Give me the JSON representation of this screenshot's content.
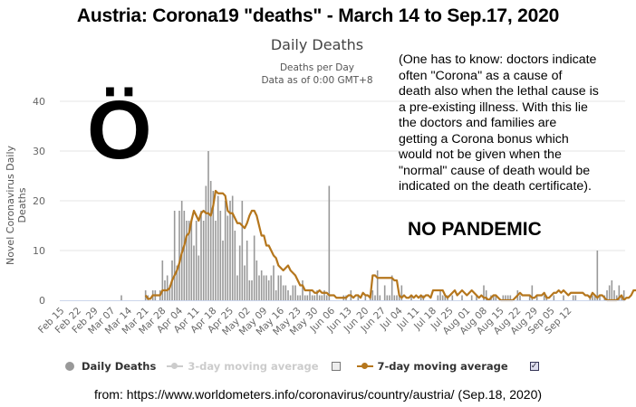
{
  "header": {
    "title": "Austria: Corona19 \"deaths\" - March 14 to Sep.17, 2020"
  },
  "chart_header": {
    "title": "Daily Deaths",
    "subtitle_1": "Deaths per Day",
    "subtitle_2": "Data as of 0:00 GMT+8"
  },
  "annotations": {
    "big_letter": "Ö",
    "note": "(One has to know: doctors indicate\noften \"Corona\" as a cause of\ndeath also when the lethal cause is\na pre-existing illness. With this lie\nthe doctors and families are\ngetting a Corona bonus which\nwould not be given when the\n\"normal\" cause of death would be\nindicated on the death certificate).",
    "stamp": "NO PANDEMIC"
  },
  "legend": {
    "items": [
      {
        "label": "Daily Deaths",
        "icon": "circle-icon",
        "color": "#999999",
        "enabled": true
      },
      {
        "label": "3-day moving average",
        "icon": "line-marker-icon",
        "color": "#cccccc",
        "enabled": false
      },
      {
        "label": "7-day moving average",
        "icon": "line-marker-icon",
        "color": "#b5761c",
        "enabled": true
      }
    ],
    "checkbox_3day": "unchecked",
    "checkbox_7day": "checked",
    "check_glyph": "✓"
  },
  "source": "from: https://www.worldometers.info/coronavirus/country/austria/ (Sep.18, 2020)",
  "colors": {
    "bar": "#999999",
    "line": "#b5761c",
    "grid": "#e6e6e6",
    "axis": "#ccd6eb",
    "tick_text": "#666666"
  },
  "chart_data": {
    "type": "bar",
    "title": "Daily Deaths",
    "subtitle": "Deaths per Day / Data as of 0:00 GMT+8",
    "xlabel": "",
    "ylabel": "Novel Coronavirus Daily Deaths",
    "ylim": [
      0,
      40
    ],
    "yticks": [
      0,
      10,
      20,
      30,
      40
    ],
    "grid": true,
    "legend_position": "bottom",
    "x_start": "Feb 15",
    "x_end": "Sep 17",
    "xtick_labels": [
      "Feb 15",
      "Feb 22",
      "Feb 29",
      "Mar 07",
      "Mar 14",
      "Mar 21",
      "Mar 28",
      "Apr 04",
      "Apr 11",
      "Apr 18",
      "Apr 25",
      "May 02",
      "May 09",
      "May 16",
      "May 23",
      "May 30",
      "Jun 06",
      "Jun 13",
      "Jun 20",
      "Jun 27",
      "Jul 04",
      "Jul 11",
      "Jul 18",
      "Jul 25",
      "Aug 01",
      "Aug 08",
      "Aug 15",
      "Aug 22",
      "Aug 29",
      "Sep 05",
      "Sep 12"
    ],
    "series": [
      {
        "name": "Daily Deaths",
        "type": "bar",
        "values": [
          0,
          0,
          0,
          0,
          0,
          0,
          0,
          0,
          0,
          0,
          0,
          0,
          0,
          0,
          0,
          0,
          0,
          0,
          0,
          0,
          0,
          0,
          0,
          0,
          0,
          1,
          0,
          0,
          0,
          0,
          0,
          0,
          0,
          0,
          0,
          2,
          1,
          0,
          2,
          2,
          0,
          2,
          8,
          4,
          5,
          3,
          8,
          18,
          7,
          18,
          20,
          18,
          16,
          16,
          16,
          11,
          16,
          9,
          18,
          16,
          23,
          30,
          24,
          22,
          16,
          21,
          18,
          12,
          20,
          17,
          20,
          21,
          14,
          5,
          11,
          20,
          7,
          12,
          4,
          4,
          13,
          8,
          5,
          6,
          5,
          5,
          4,
          5,
          7,
          2,
          5,
          5,
          3,
          3,
          2,
          1,
          3,
          3,
          1,
          1,
          4,
          1,
          1,
          2,
          1,
          1,
          2,
          1,
          1,
          2,
          1,
          23,
          0,
          0,
          0,
          0,
          0,
          1,
          1,
          0,
          2,
          0,
          0,
          1,
          0,
          0,
          1,
          0,
          1,
          2,
          1,
          6,
          1,
          0,
          3,
          1,
          1,
          5,
          1,
          1,
          1,
          3,
          0,
          0,
          0,
          1,
          0,
          0,
          0,
          1,
          1,
          0,
          0,
          0,
          0,
          0,
          1,
          2,
          1,
          1,
          1,
          0,
          1,
          0,
          0,
          0,
          1,
          0,
          0,
          0,
          1,
          0,
          1,
          0,
          0,
          3,
          2,
          0,
          1,
          1,
          1,
          0,
          0,
          1,
          1,
          1,
          1,
          0,
          0,
          2,
          1,
          0,
          0,
          0,
          1,
          3,
          0,
          1,
          0,
          0,
          1,
          1,
          0,
          0,
          1,
          0,
          0,
          0,
          1,
          0,
          0,
          0,
          1,
          1,
          0,
          0,
          0,
          0,
          0,
          1,
          1,
          1,
          10,
          1,
          0,
          1,
          2,
          3,
          4,
          2,
          1,
          3,
          1,
          2
        ]
      },
      {
        "name": "7-day moving average",
        "type": "line",
        "values": [
          null,
          null,
          null,
          null,
          null,
          null,
          null,
          null,
          null,
          null,
          null,
          null,
          null,
          null,
          null,
          null,
          null,
          null,
          null,
          null,
          null,
          null,
          null,
          null,
          null,
          null,
          null,
          null,
          null,
          null,
          null,
          null,
          null,
          null,
          null,
          1,
          0.3,
          0.3,
          1,
          1,
          1,
          1,
          2,
          2,
          2,
          2.5,
          4,
          5,
          6,
          7.5,
          9.5,
          11,
          13,
          13.5,
          16,
          18,
          17,
          16,
          17.5,
          18,
          17.5,
          17.5,
          17,
          19,
          22,
          21.5,
          21.5,
          21.5,
          21,
          18,
          17.5,
          17.5,
          16.5,
          15.5,
          15.5,
          15,
          14.5,
          15.5,
          17,
          18,
          18,
          17,
          15,
          13,
          13,
          11,
          11,
          10,
          9,
          8.5,
          7,
          6.5,
          6,
          6.5,
          7,
          6,
          5.5,
          5,
          4,
          3,
          3,
          2,
          2,
          2,
          2,
          1.5,
          1.5,
          2,
          1.5,
          1.5,
          1.5,
          1,
          1,
          1,
          0.5,
          0.5,
          0.5,
          0.5,
          0.5,
          1,
          1,
          0.5,
          1,
          1,
          0.5,
          1.5,
          1,
          1,
          0.5,
          5,
          5,
          4.5,
          4.5,
          4.5,
          4.5,
          4.5,
          4.5,
          4.5,
          4,
          4,
          1,
          0.5,
          1,
          0.5,
          0.5,
          1,
          0.5,
          1,
          0.5,
          1,
          0.5,
          1,
          1,
          0.5,
          2,
          2,
          2,
          2,
          2,
          1,
          0.5,
          1,
          1.5,
          2,
          1,
          1.5,
          2,
          1.5,
          1,
          1.5,
          2,
          1.5,
          1,
          0.5,
          1,
          0.5,
          0.5,
          0,
          0.5,
          1,
          1,
          0.5,
          0,
          0,
          0,
          0,
          0,
          0,
          0.5,
          1,
          1.5,
          1,
          1,
          1,
          1,
          0.5,
          0.5,
          1,
          1,
          1,
          1.5,
          0.5,
          0.5,
          1,
          1.5,
          1.5,
          2,
          1.5,
          2,
          1.5,
          1,
          1.5,
          1.5,
          1.5,
          1.5,
          1.5,
          1.5,
          1,
          1,
          0.5,
          1.5,
          1,
          0.5,
          1,
          1,
          0.5,
          0,
          0,
          0,
          0,
          0,
          0.5,
          1,
          0,
          0.5,
          0.5,
          1,
          2,
          2,
          2,
          2,
          2,
          2,
          3,
          4,
          2,
          2,
          1,
          2.5,
          2
        ]
      }
    ]
  }
}
